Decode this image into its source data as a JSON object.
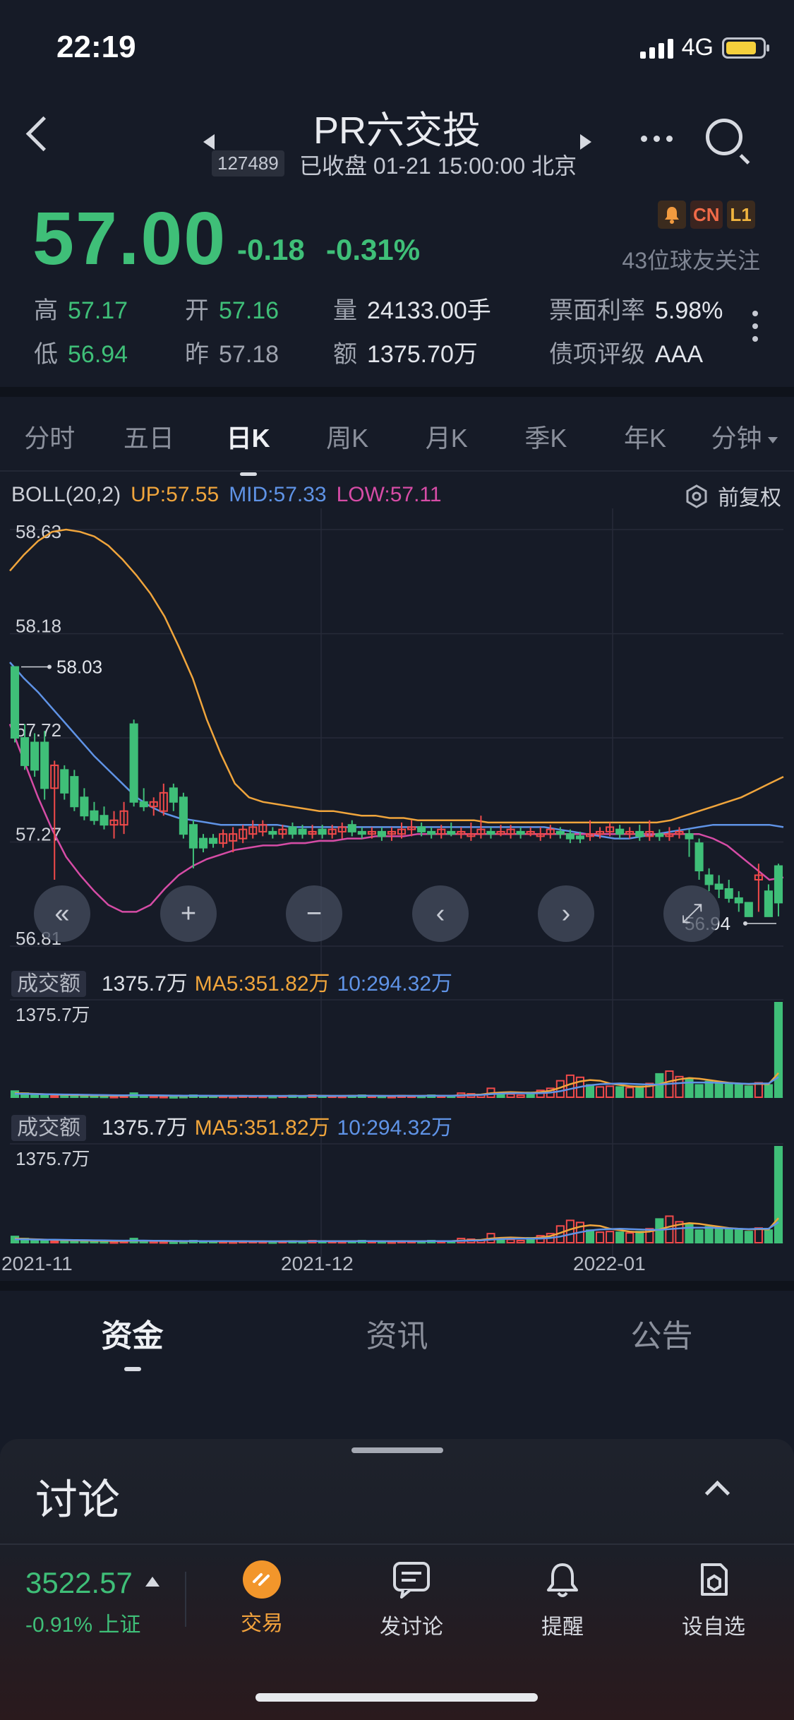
{
  "status_bar": {
    "time": "22:19",
    "network": "4G"
  },
  "header": {
    "title": "PR六交投",
    "code": "127489",
    "status": "已收盘 01-21 15:00:00 北京"
  },
  "quote": {
    "price": "57.00",
    "change": "-0.18",
    "change_pct": "-0.31%",
    "badges": [
      "CN",
      "L1"
    ],
    "followers": "43位球友关注",
    "high_label": "高",
    "high": "57.17",
    "open_label": "开",
    "open": "57.16",
    "volume_label": "量",
    "volume": "24133.00手",
    "coupon_label": "票面利率",
    "coupon": "5.98%",
    "low_label": "低",
    "low": "56.94",
    "prev_label": "昨",
    "prev": "57.18",
    "amount_label": "额",
    "amount": "1375.70万",
    "rating_label": "债项评级",
    "rating": "AAA"
  },
  "period_tabs": [
    "分时",
    "五日",
    "日K",
    "周K",
    "月K",
    "季K",
    "年K",
    "分钟"
  ],
  "active_period": "日K",
  "indicator": {
    "name": "BOLL(20,2)",
    "up": "UP:57.55",
    "mid": "MID:57.33",
    "low": "LOW:57.11",
    "adjust": "前复权"
  },
  "chart_data": {
    "type": "candlestick",
    "y_ticks": [
      "58.63",
      "58.18",
      "57.72",
      "57.27",
      "56.81"
    ],
    "ylim": [
      56.81,
      58.63
    ],
    "max_label": "58.03",
    "min_label": "56.94",
    "x_labels": [
      "2021-11",
      "2021-12",
      "2022-01"
    ],
    "colors": {
      "up": "#f04a4a",
      "down": "#3fbf78",
      "upper": "#f0a53c",
      "mid": "#5f93e6",
      "lower": "#d64ca6"
    },
    "candles": [
      [
        58.03,
        57.72,
        58.03,
        57.7
      ],
      [
        57.72,
        57.6,
        57.78,
        57.58
      ],
      [
        57.7,
        57.58,
        57.74,
        57.55
      ],
      [
        57.7,
        57.5,
        57.75,
        57.45
      ],
      [
        57.5,
        57.6,
        57.62,
        57.1
      ],
      [
        57.58,
        57.48,
        57.6,
        57.45
      ],
      [
        57.55,
        57.42,
        57.58,
        57.4
      ],
      [
        57.46,
        57.38,
        57.5,
        57.36
      ],
      [
        57.4,
        57.36,
        57.44,
        57.34
      ],
      [
        57.38,
        57.34,
        57.42,
        57.32
      ],
      [
        57.34,
        57.36,
        57.4,
        57.28
      ],
      [
        57.34,
        57.4,
        57.44,
        57.3
      ],
      [
        57.78,
        57.44,
        57.8,
        57.42
      ],
      [
        57.44,
        57.42,
        57.5,
        57.4
      ],
      [
        57.42,
        57.44,
        57.46,
        57.38
      ],
      [
        57.4,
        57.48,
        57.52,
        57.38
      ],
      [
        57.5,
        57.44,
        57.52,
        57.4
      ],
      [
        57.46,
        57.3,
        57.48,
        57.28
      ],
      [
        57.34,
        57.24,
        57.36,
        57.15
      ],
      [
        57.28,
        57.24,
        57.3,
        57.22
      ],
      [
        57.28,
        57.26,
        57.3,
        57.24
      ],
      [
        57.26,
        57.3,
        57.32,
        57.24
      ],
      [
        57.27,
        57.3,
        57.33,
        57.22
      ],
      [
        57.28,
        57.32,
        57.34,
        57.26
      ],
      [
        57.3,
        57.33,
        57.36,
        57.28
      ],
      [
        57.31,
        57.34,
        57.36,
        57.29
      ],
      [
        57.31,
        57.3,
        57.33,
        57.28
      ],
      [
        57.3,
        57.32,
        57.34,
        57.28
      ],
      [
        57.33,
        57.3,
        57.35,
        57.28
      ],
      [
        57.32,
        57.3,
        57.34,
        57.28
      ],
      [
        57.3,
        57.31,
        57.34,
        57.28
      ],
      [
        57.32,
        57.3,
        57.34,
        57.28
      ],
      [
        57.3,
        57.32,
        57.34,
        57.28
      ],
      [
        57.31,
        57.33,
        57.35,
        57.28
      ],
      [
        57.34,
        57.31,
        57.36,
        57.29
      ],
      [
        57.31,
        57.3,
        57.33,
        57.28
      ],
      [
        57.3,
        57.31,
        57.33,
        57.28
      ],
      [
        57.31,
        57.29,
        57.33,
        57.27
      ],
      [
        57.3,
        57.31,
        57.33,
        57.27
      ],
      [
        57.3,
        57.32,
        57.35,
        57.28
      ],
      [
        57.32,
        57.33,
        57.36,
        57.29
      ],
      [
        57.33,
        57.31,
        57.35,
        57.29
      ],
      [
        57.31,
        57.3,
        57.33,
        57.28
      ],
      [
        57.3,
        57.32,
        57.34,
        57.28
      ],
      [
        57.31,
        57.3,
        57.35,
        57.29
      ],
      [
        57.3,
        57.31,
        57.33,
        57.28
      ],
      [
        57.29,
        57.3,
        57.35,
        57.27
      ],
      [
        57.3,
        57.32,
        57.38,
        57.28
      ],
      [
        57.31,
        57.3,
        57.33,
        57.28
      ],
      [
        57.3,
        57.31,
        57.34,
        57.29
      ],
      [
        57.3,
        57.32,
        57.34,
        57.28
      ],
      [
        57.31,
        57.3,
        57.33,
        57.28
      ],
      [
        57.3,
        57.31,
        57.33,
        57.29
      ],
      [
        57.29,
        57.3,
        57.33,
        57.27
      ],
      [
        57.3,
        57.32,
        57.34,
        57.28
      ],
      [
        57.31,
        57.3,
        57.33,
        57.28
      ],
      [
        57.3,
        57.28,
        57.32,
        57.26
      ],
      [
        57.29,
        57.28,
        57.31,
        57.26
      ],
      [
        57.29,
        57.3,
        57.36,
        57.27
      ],
      [
        57.3,
        57.31,
        57.33,
        57.28
      ],
      [
        57.31,
        57.33,
        57.35,
        57.29
      ],
      [
        57.32,
        57.3,
        57.34,
        57.28
      ],
      [
        57.3,
        57.31,
        57.33,
        57.28
      ],
      [
        57.31,
        57.29,
        57.34,
        57.27
      ],
      [
        57.29,
        57.31,
        57.36,
        57.27
      ],
      [
        57.3,
        57.29,
        57.32,
        57.27
      ],
      [
        57.29,
        57.3,
        57.33,
        57.27
      ],
      [
        57.3,
        57.31,
        57.33,
        57.28
      ],
      [
        57.3,
        57.28,
        57.32,
        57.2
      ],
      [
        57.26,
        57.14,
        57.28,
        57.1
      ],
      [
        57.12,
        57.08,
        57.15,
        57.05
      ],
      [
        57.08,
        57.06,
        57.12,
        57.02
      ],
      [
        57.06,
        57.02,
        57.1,
        57.0
      ],
      [
        57.02,
        57.0,
        57.05,
        56.96
      ],
      [
        57.0,
        56.94,
        57.0,
        56.94
      ],
      [
        57.1,
        57.12,
        57.17,
        56.96
      ],
      [
        57.05,
        56.94,
        57.08,
        56.94
      ],
      [
        57.16,
        57.0,
        57.17,
        56.94
      ]
    ],
    "upper_band": [
      58.45,
      58.52,
      58.58,
      58.62,
      58.63,
      58.62,
      58.6,
      58.56,
      58.5,
      58.43,
      58.35,
      58.25,
      58.12,
      57.98,
      57.8,
      57.65,
      57.52,
      57.46,
      57.44,
      57.43,
      57.42,
      57.41,
      57.4,
      57.4,
      57.39,
      57.38,
      57.38,
      57.37,
      57.37,
      57.36,
      57.36,
      57.36,
      57.36,
      57.36,
      57.35,
      57.35,
      57.35,
      57.35,
      57.35,
      57.35,
      57.35,
      57.35,
      57.35,
      57.35,
      57.35,
      57.35,
      57.35,
      57.36,
      57.38,
      57.4,
      57.42,
      57.44,
      57.46,
      57.49,
      57.52,
      57.55
    ],
    "mid_band": [
      58.05,
      57.98,
      57.92,
      57.85,
      57.78,
      57.71,
      57.64,
      57.58,
      57.52,
      57.46,
      57.42,
      57.39,
      57.37,
      57.36,
      57.35,
      57.34,
      57.34,
      57.34,
      57.34,
      57.34,
      57.33,
      57.33,
      57.33,
      57.33,
      57.33,
      57.33,
      57.33,
      57.33,
      57.33,
      57.33,
      57.33,
      57.33,
      57.33,
      57.33,
      57.33,
      57.33,
      57.33,
      57.33,
      57.33,
      57.32,
      57.31,
      57.3,
      57.29,
      57.28,
      57.28,
      57.29,
      57.3,
      57.31,
      57.32,
      57.33,
      57.34,
      57.34,
      57.34,
      57.34,
      57.34,
      57.33
    ],
    "lower_band": [
      57.78,
      57.62,
      57.46,
      57.32,
      57.2,
      57.12,
      57.05,
      56.99,
      56.96,
      56.96,
      56.99,
      57.06,
      57.12,
      57.16,
      57.19,
      57.21,
      57.23,
      57.24,
      57.25,
      57.25,
      57.26,
      57.26,
      57.27,
      57.27,
      57.28,
      57.28,
      57.29,
      57.29,
      57.29,
      57.3,
      57.3,
      57.3,
      57.3,
      57.3,
      57.3,
      57.3,
      57.3,
      57.3,
      57.3,
      57.3,
      57.3,
      57.3,
      57.3,
      57.3,
      57.3,
      57.3,
      57.3,
      57.3,
      57.3,
      57.3,
      57.28,
      57.25,
      57.2,
      57.15,
      57.1,
      57.11
    ]
  },
  "volume_panels": [
    {
      "tag": "成交额",
      "value": "1375.7万",
      "ma5": "MA5:351.82万",
      "ma10": "10:294.32万",
      "axis_max": "1375.7万"
    },
    {
      "tag": "成交额",
      "value": "1375.7万",
      "ma5": "MA5:351.82万",
      "ma10": "10:294.32万",
      "axis_max": "1375.7万"
    }
  ],
  "volume_data": {
    "max": 1375.7,
    "values": [
      90,
      60,
      40,
      30,
      20,
      25,
      40,
      35,
      20,
      18,
      15,
      20,
      60,
      25,
      18,
      15,
      12,
      15,
      30,
      25,
      20,
      18,
      15,
      22,
      20,
      18,
      15,
      20,
      25,
      18,
      30,
      22,
      20,
      18,
      25,
      30,
      20,
      18,
      15,
      25,
      20,
      18,
      30,
      22,
      20,
      60,
      50,
      40,
      130,
      60,
      45,
      30,
      70,
      100,
      130,
      240,
      320,
      290,
      180,
      150,
      160,
      150,
      140,
      160,
      200,
      340,
      380,
      300,
      260,
      180,
      230,
      220,
      200,
      180,
      160,
      210,
      180,
      1375.7
    ],
    "up": [
      false,
      false,
      false,
      false,
      true,
      false,
      false,
      false,
      false,
      false,
      true,
      true,
      false,
      false,
      true,
      true,
      false,
      false,
      false,
      false,
      false,
      true,
      true,
      true,
      true,
      true,
      false,
      true,
      false,
      false,
      true,
      false,
      true,
      true,
      false,
      false,
      true,
      false,
      true,
      true,
      true,
      false,
      false,
      true,
      false,
      true,
      true,
      true,
      true,
      false,
      true,
      true,
      false,
      true,
      true,
      true,
      true,
      true,
      false,
      true,
      true,
      false,
      true,
      false,
      true,
      false,
      true,
      true,
      false,
      false,
      false,
      false,
      false,
      false,
      false,
      true,
      false,
      false
    ],
    "ma5": [
      60,
      55,
      50,
      45,
      40,
      35,
      32,
      30,
      28,
      26,
      24,
      24,
      28,
      28,
      26,
      24,
      22,
      20,
      22,
      22,
      20,
      20,
      20,
      20,
      20,
      20,
      19,
      20,
      21,
      20,
      22,
      22,
      21,
      21,
      22,
      23,
      22,
      21,
      20,
      22,
      21,
      21,
      23,
      22,
      22,
      30,
      35,
      40,
      60,
      70,
      75,
      70,
      65,
      75,
      95,
      140,
      190,
      230,
      250,
      240,
      200,
      180,
      160,
      150,
      160,
      190,
      230,
      260,
      280,
      270,
      250,
      230,
      210,
      200,
      190,
      195,
      190,
      351.82
    ],
    "ma10": [
      50,
      48,
      46,
      44,
      42,
      40,
      38,
      36,
      34,
      32,
      30,
      29,
      30,
      30,
      28,
      27,
      25,
      24,
      24,
      23,
      22,
      22,
      21,
      21,
      20,
      20,
      20,
      20,
      20,
      20,
      21,
      21,
      21,
      21,
      21,
      22,
      22,
      21,
      21,
      21,
      21,
      21,
      22,
      22,
      22,
      26,
      30,
      33,
      45,
      52,
      57,
      58,
      58,
      60,
      68,
      88,
      120,
      150,
      175,
      190,
      195,
      200,
      195,
      190,
      185,
      185,
      195,
      205,
      215,
      215,
      215,
      210,
      205,
      200,
      195,
      200,
      200,
      294.32
    ]
  },
  "dates": [
    "2021-11",
    "2021-12",
    "2022-01"
  ],
  "chart_controls": [
    "«",
    "+",
    "−",
    "‹",
    "›",
    "⤢"
  ],
  "bottom_tabs": [
    "资金",
    "资讯",
    "公告"
  ],
  "active_bottom_tab": "资金",
  "discussion": {
    "title": "讨论"
  },
  "nav": {
    "index_value": "3522.57",
    "index_change": "-0.91%",
    "index_name": "上证",
    "items": [
      {
        "label": "交易"
      },
      {
        "label": "发讨论"
      },
      {
        "label": "提醒"
      },
      {
        "label": "设自选"
      }
    ]
  }
}
